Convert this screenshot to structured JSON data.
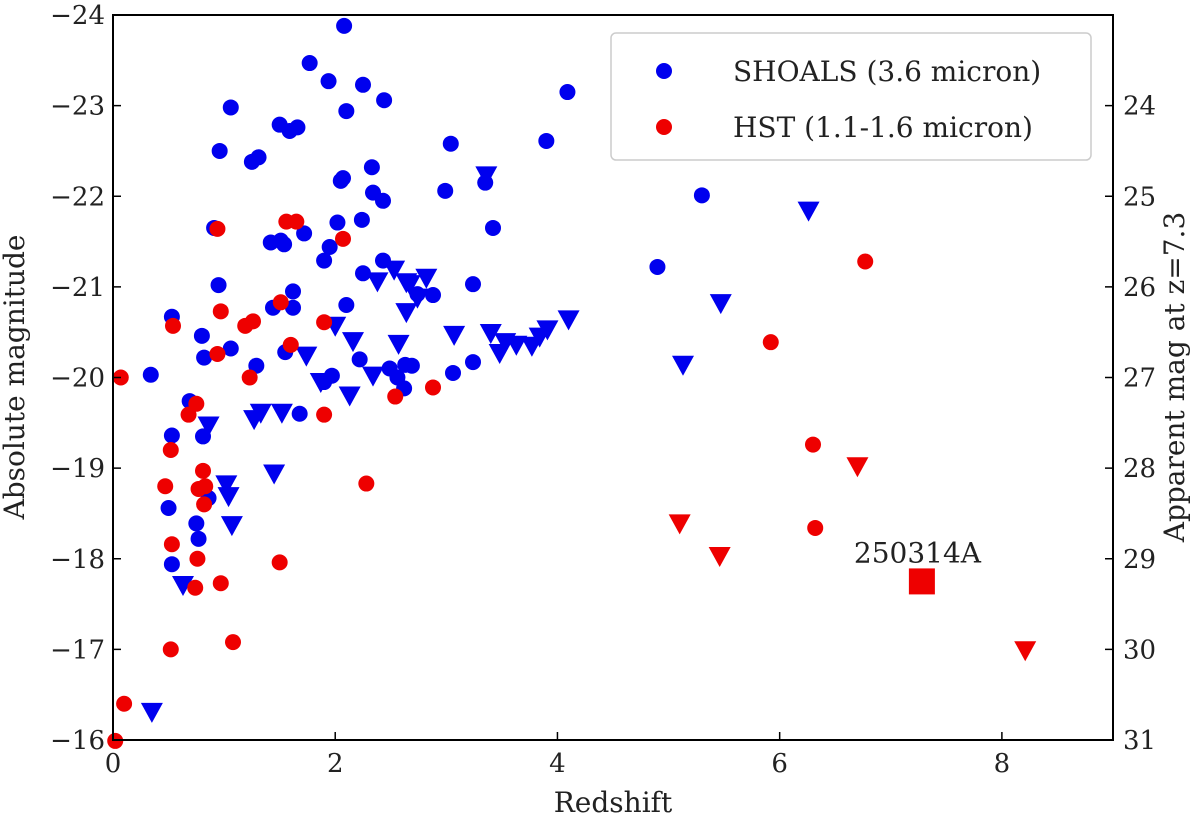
{
  "chart_data": {
    "type": "scatter",
    "title": "",
    "xlabel": "Redshift",
    "ylabel": "Absolute magnitude",
    "ylabel_right": "Apparent mag at z=7.3",
    "xlim": [
      0,
      9
    ],
    "ylim": [
      -16,
      -24
    ],
    "xticks": [
      0,
      2,
      4,
      6,
      8
    ],
    "yticks": [
      -16,
      -17,
      -18,
      -19,
      -20,
      -21,
      -22,
      -23,
      -24
    ],
    "yticks_right": [
      24,
      25,
      26,
      27,
      28,
      29,
      30,
      31
    ],
    "right_axis_offset": 47.0,
    "grid": false,
    "legend": {
      "position": "top-right",
      "entries": [
        {
          "label": "SHOALS (3.6 micron)",
          "color": "#0000ee",
          "marker": "circle"
        },
        {
          "label": "HST (1.1-1.6 micron)",
          "color": "#ee0000",
          "marker": "circle"
        }
      ]
    },
    "colors": {
      "shoals": "#0000ee",
      "hst": "#ee0000"
    },
    "series": [
      {
        "name": "SHOALS detections",
        "color": "#0000ee",
        "marker": "circle",
        "points": [
          [
            2.08,
            -23.88
          ],
          [
            1.77,
            -23.47
          ],
          [
            1.94,
            -23.27
          ],
          [
            2.25,
            -23.23
          ],
          [
            4.09,
            -23.15
          ],
          [
            2.44,
            -23.06
          ],
          [
            1.06,
            -22.98
          ],
          [
            2.1,
            -22.94
          ],
          [
            1.5,
            -22.79
          ],
          [
            1.59,
            -22.72
          ],
          [
            1.66,
            -22.76
          ],
          [
            0.96,
            -22.5
          ],
          [
            1.25,
            -22.38
          ],
          [
            1.31,
            -22.43
          ],
          [
            3.9,
            -22.61
          ],
          [
            3.04,
            -22.58
          ],
          [
            2.33,
            -22.32
          ],
          [
            2.05,
            -22.17
          ],
          [
            2.07,
            -22.2
          ],
          [
            2.34,
            -22.04
          ],
          [
            2.99,
            -22.06
          ],
          [
            3.35,
            -22.15
          ],
          [
            2.43,
            -21.95
          ],
          [
            5.3,
            -22.01
          ],
          [
            2.02,
            -21.71
          ],
          [
            2.24,
            -21.74
          ],
          [
            0.91,
            -21.65
          ],
          [
            1.51,
            -21.51
          ],
          [
            1.42,
            -21.49
          ],
          [
            1.54,
            -21.47
          ],
          [
            1.72,
            -21.59
          ],
          [
            1.95,
            -21.44
          ],
          [
            3.42,
            -21.65
          ],
          [
            1.9,
            -21.29
          ],
          [
            2.43,
            -21.29
          ],
          [
            2.25,
            -21.15
          ],
          [
            4.9,
            -21.22
          ],
          [
            1.62,
            -20.95
          ],
          [
            0.95,
            -21.02
          ],
          [
            1.44,
            -20.77
          ],
          [
            1.62,
            -20.77
          ],
          [
            2.1,
            -20.8
          ],
          [
            2.74,
            -20.92
          ],
          [
            2.88,
            -20.91
          ],
          [
            3.24,
            -21.03
          ],
          [
            0.53,
            -20.67
          ],
          [
            0.8,
            -20.46
          ],
          [
            1.06,
            -20.32
          ],
          [
            0.82,
            -20.22
          ],
          [
            1.29,
            -20.13
          ],
          [
            1.55,
            -20.28
          ],
          [
            2.22,
            -20.2
          ],
          [
            2.49,
            -20.1
          ],
          [
            2.63,
            -20.14
          ],
          [
            2.69,
            -20.13
          ],
          [
            2.56,
            -20.0
          ],
          [
            1.9,
            -19.95
          ],
          [
            1.97,
            -20.02
          ],
          [
            2.62,
            -19.88
          ],
          [
            0.34,
            -20.03
          ],
          [
            3.06,
            -20.05
          ],
          [
            3.24,
            -20.17
          ],
          [
            0.69,
            -19.74
          ],
          [
            1.68,
            -19.6
          ],
          [
            0.53,
            -19.36
          ],
          [
            0.81,
            -19.35
          ],
          [
            0.86,
            -18.67
          ],
          [
            0.5,
            -18.56
          ],
          [
            0.75,
            -18.39
          ],
          [
            0.77,
            -18.22
          ],
          [
            0.53,
            -17.94
          ]
        ]
      },
      {
        "name": "SHOALS upper limits",
        "color": "#0000ee",
        "marker": "triangle-down",
        "points": [
          [
            3.36,
            -22.22
          ],
          [
            2.67,
            -21.02
          ],
          [
            2.64,
            -21.04
          ],
          [
            2.82,
            -21.09
          ],
          [
            2.74,
            -20.87
          ],
          [
            2.64,
            -20.71
          ],
          [
            4.1,
            -20.63
          ],
          [
            2.0,
            -20.56
          ],
          [
            2.16,
            -20.39
          ],
          [
            2.57,
            -20.36
          ],
          [
            3.07,
            -20.46
          ],
          [
            3.4,
            -20.48
          ],
          [
            3.84,
            -20.44
          ],
          [
            3.53,
            -20.38
          ],
          [
            3.63,
            -20.35
          ],
          [
            3.77,
            -20.34
          ],
          [
            3.48,
            -20.26
          ],
          [
            1.74,
            -20.23
          ],
          [
            5.13,
            -20.13
          ],
          [
            2.34,
            -20.01
          ],
          [
            1.87,
            -19.94
          ],
          [
            2.13,
            -19.79
          ],
          [
            1.33,
            -19.6
          ],
          [
            1.52,
            -19.6
          ],
          [
            1.27,
            -19.53
          ],
          [
            0.86,
            -19.46
          ],
          [
            1.45,
            -18.93
          ],
          [
            1.02,
            -18.81
          ],
          [
            1.04,
            -18.68
          ],
          [
            1.07,
            -18.36
          ],
          [
            0.63,
            -17.7
          ],
          [
            0.35,
            -16.3
          ],
          [
            6.26,
            -21.83
          ],
          [
            5.47,
            -20.81
          ],
          [
            2.38,
            -21.05
          ],
          [
            2.53,
            -21.18
          ],
          [
            3.91,
            -20.52
          ]
        ]
      },
      {
        "name": "HST detections",
        "color": "#ee0000",
        "marker": "circle",
        "points": [
          [
            1.56,
            -21.72
          ],
          [
            1.65,
            -21.72
          ],
          [
            2.07,
            -21.53
          ],
          [
            0.94,
            -21.64
          ],
          [
            6.77,
            -21.28
          ],
          [
            1.51,
            -20.83
          ],
          [
            0.97,
            -20.73
          ],
          [
            0.54,
            -20.57
          ],
          [
            1.19,
            -20.57
          ],
          [
            1.26,
            -20.62
          ],
          [
            1.9,
            -20.61
          ],
          [
            1.6,
            -20.36
          ],
          [
            0.94,
            -20.26
          ],
          [
            5.92,
            -20.39
          ],
          [
            1.23,
            -20.0
          ],
          [
            0.07,
            -20.0
          ],
          [
            0.75,
            -19.71
          ],
          [
            0.68,
            -19.59
          ],
          [
            1.9,
            -19.59
          ],
          [
            2.54,
            -19.79
          ],
          [
            2.88,
            -19.89
          ],
          [
            6.3,
            -19.26
          ],
          [
            0.52,
            -19.2
          ],
          [
            0.81,
            -18.97
          ],
          [
            0.77,
            -18.77
          ],
          [
            0.83,
            -18.8
          ],
          [
            0.47,
            -18.8
          ],
          [
            2.28,
            -18.83
          ],
          [
            0.82,
            -18.6
          ],
          [
            6.32,
            -18.34
          ],
          [
            0.53,
            -18.16
          ],
          [
            0.76,
            -18.0
          ],
          [
            1.5,
            -17.96
          ],
          [
            0.97,
            -17.73
          ],
          [
            0.74,
            -17.68
          ],
          [
            1.08,
            -17.08
          ],
          [
            0.52,
            -17.0
          ],
          [
            0.1,
            -16.4
          ],
          [
            0.02,
            -15.99
          ]
        ]
      },
      {
        "name": "HST upper limits",
        "color": "#ee0000",
        "marker": "triangle-down",
        "points": [
          [
            5.1,
            -18.38
          ],
          [
            5.46,
            -18.02
          ],
          [
            6.7,
            -19.01
          ],
          [
            8.21,
            -16.98
          ]
        ]
      },
      {
        "name": "250314A",
        "color": "#ee0000",
        "marker": "square",
        "points": [
          [
            7.28,
            -17.75
          ]
        ]
      }
    ],
    "annotations": [
      {
        "text": "250314A",
        "x": 7.28,
        "y": -17.75
      }
    ]
  }
}
